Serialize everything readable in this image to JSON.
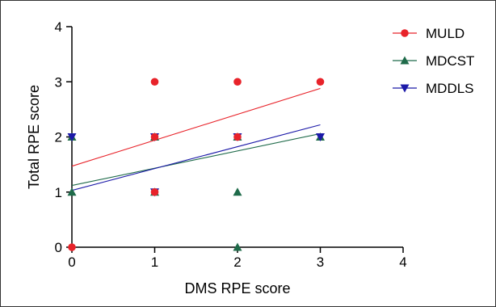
{
  "chart_data": {
    "type": "scatter",
    "xlabel": "DMS RPE score",
    "ylabel": "Total RPE score",
    "xlim": [
      0,
      4
    ],
    "ylim": [
      0,
      4
    ],
    "xticks": [
      "0",
      "1",
      "2",
      "3",
      "4"
    ],
    "yticks": [
      "0",
      "1",
      "2",
      "3",
      "4"
    ],
    "grid": false,
    "legend_position": "top-right",
    "series": [
      {
        "name": "MULD",
        "color": "#e8232a",
        "marker": "circle",
        "points": [
          [
            0,
            0
          ],
          [
            1,
            3
          ],
          [
            2,
            3
          ],
          [
            3,
            3
          ],
          [
            1,
            2
          ],
          [
            2,
            2
          ],
          [
            1,
            1
          ]
        ],
        "fit": [
          [
            0,
            1.47
          ],
          [
            3,
            2.88
          ]
        ]
      },
      {
        "name": "MDCST",
        "color": "#1f6b4a",
        "marker": "triangle-up",
        "points": [
          [
            0,
            2
          ],
          [
            0,
            1
          ],
          [
            1,
            2
          ],
          [
            2,
            2
          ],
          [
            3,
            2
          ],
          [
            1,
            1
          ],
          [
            2,
            1
          ],
          [
            2,
            0
          ]
        ],
        "fit": [
          [
            0,
            1.12
          ],
          [
            3,
            2.06
          ]
        ]
      },
      {
        "name": "MDDLS",
        "color": "#1c1aa8",
        "marker": "triangle-down",
        "points": [
          [
            0,
            2
          ],
          [
            1,
            2
          ],
          [
            2,
            2
          ],
          [
            3,
            2
          ],
          [
            1,
            1
          ]
        ],
        "fit": [
          [
            0,
            1.03
          ],
          [
            3,
            2.22
          ]
        ]
      }
    ],
    "draw_order": [
      {
        "series": 1,
        "point": 0
      },
      {
        "series": 1,
        "point": 1
      },
      {
        "series": 2,
        "point": 0
      },
      {
        "series": 1,
        "point": 2
      },
      {
        "series": 1,
        "point": 3
      },
      {
        "series": 1,
        "point": 4
      },
      {
        "series": 1,
        "point": 5
      },
      {
        "series": 1,
        "point": 6
      },
      {
        "series": 1,
        "point": 7
      },
      {
        "series": 2,
        "point": 1
      },
      {
        "series": 2,
        "point": 2
      },
      {
        "series": 2,
        "point": 3
      },
      {
        "series": 2,
        "point": 4
      },
      {
        "series": 0,
        "point": 0
      },
      {
        "series": 0,
        "point": 1
      },
      {
        "series": 0,
        "point": 2
      },
      {
        "series": 0,
        "point": 3
      },
      {
        "series": 0,
        "point": 4
      },
      {
        "series": 0,
        "point": 5
      },
      {
        "series": 0,
        "point": 6
      }
    ]
  }
}
